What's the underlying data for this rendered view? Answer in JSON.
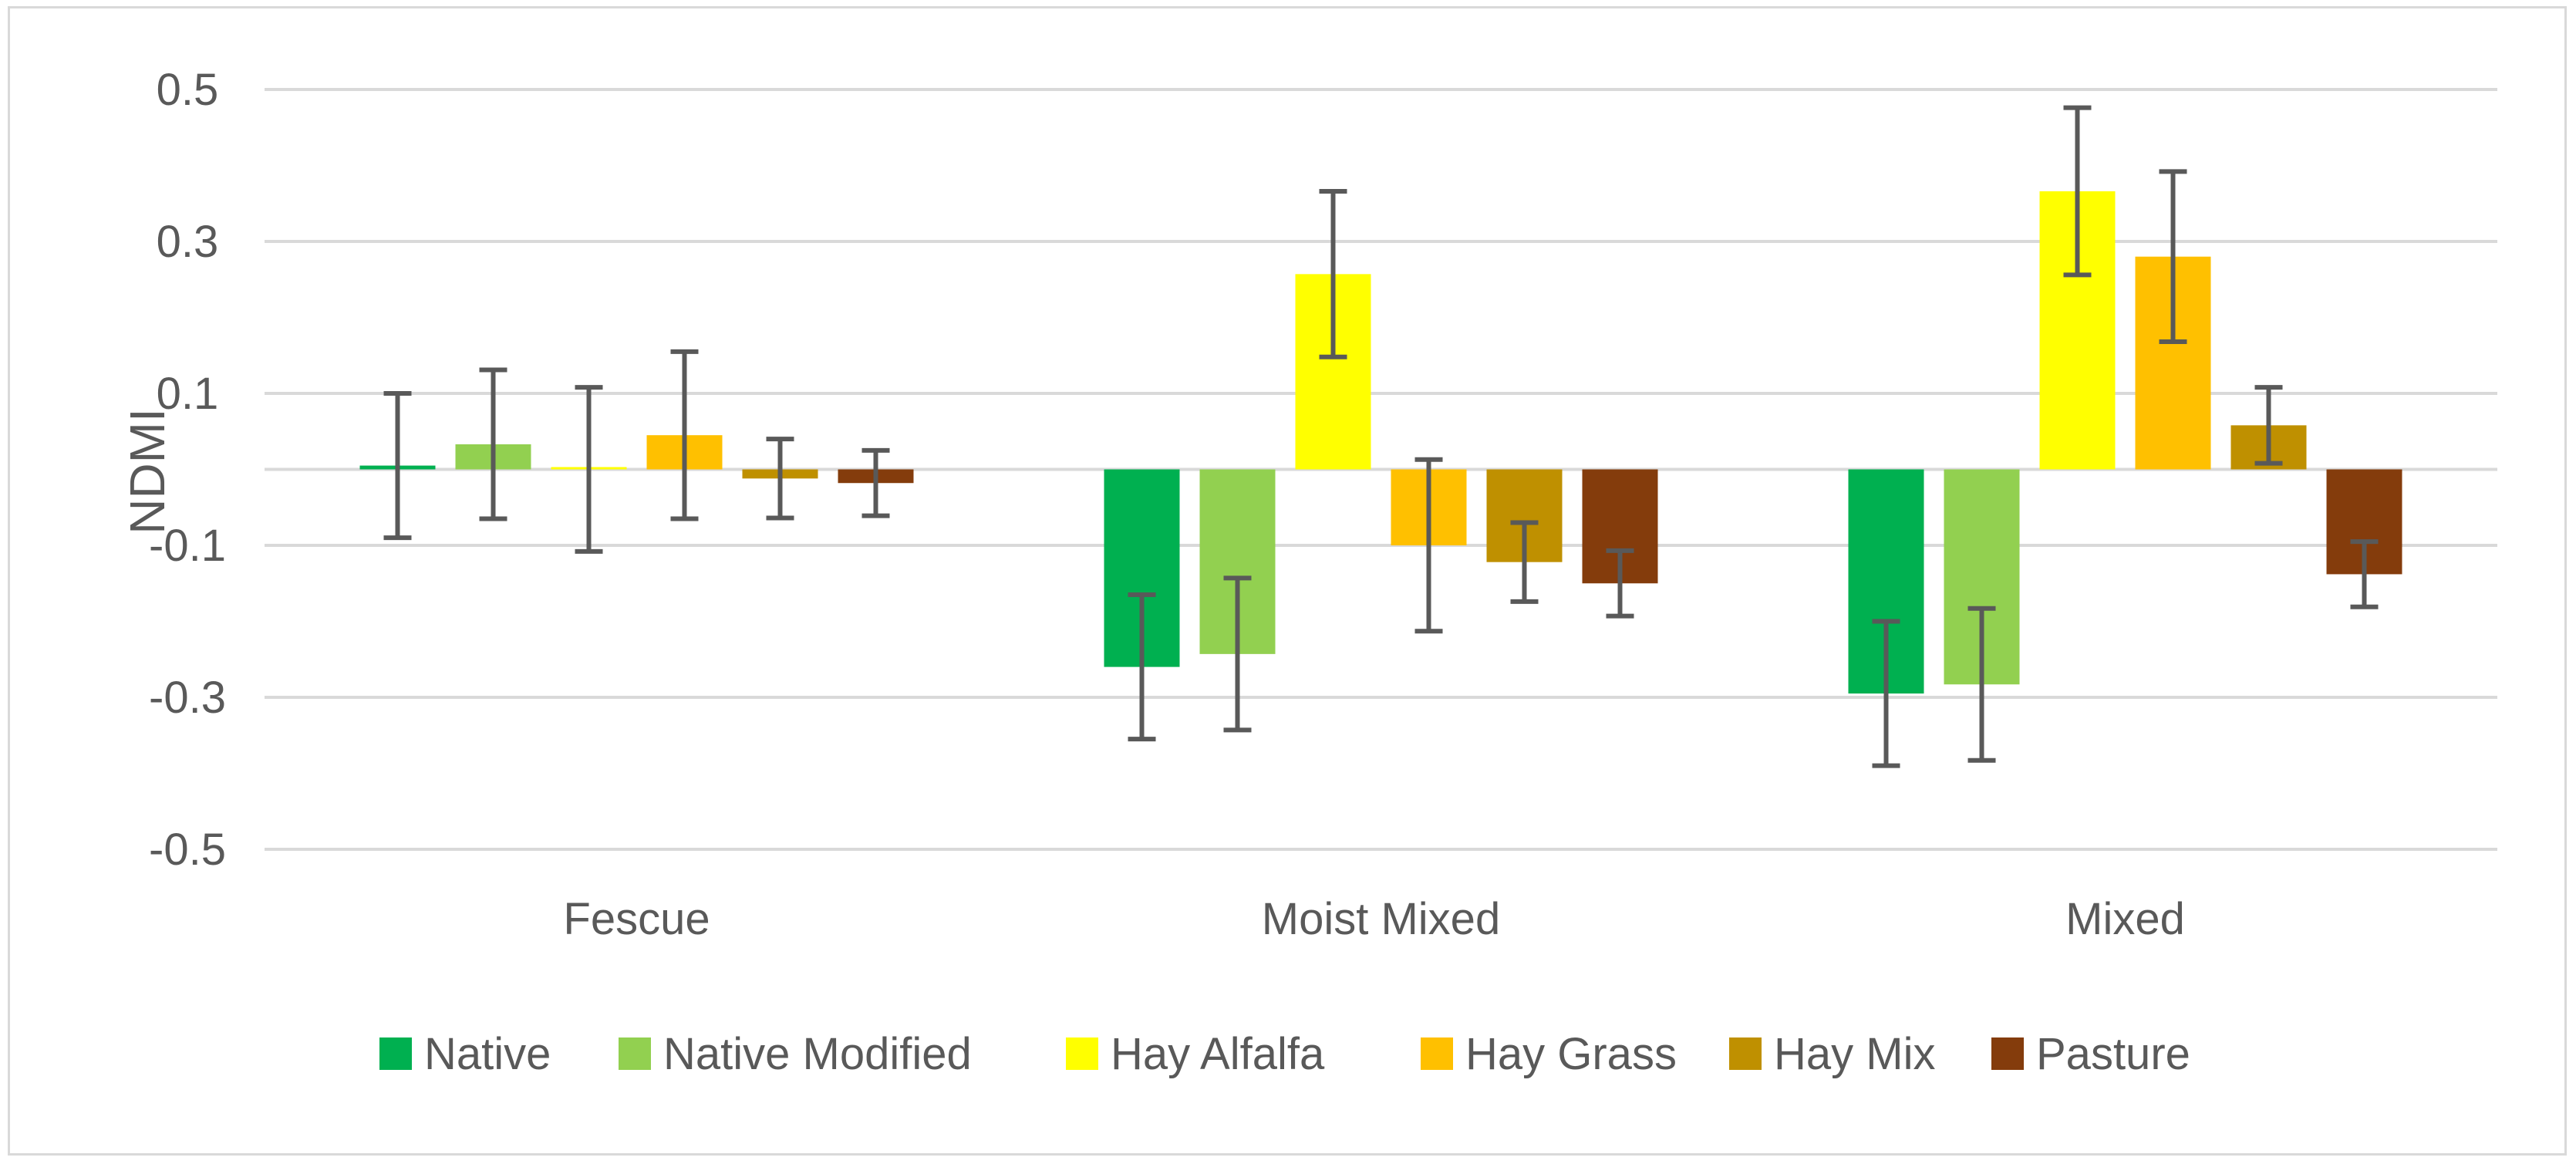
{
  "chart_data": {
    "type": "bar",
    "title": "",
    "xlabel": "",
    "ylabel": "NDMI",
    "ylim": [
      -0.5,
      0.5
    ],
    "yticks": [
      0.5,
      0.3,
      0.1,
      -0.1,
      -0.3,
      -0.5
    ],
    "ytick_labels": [
      "0.5",
      "0.3",
      "0.1",
      "-0.1",
      "-0.3",
      "-0.5"
    ],
    "grid": true,
    "legend_position": "bottom",
    "categories": [
      "Fescue",
      "Moist Mixed",
      "Mixed"
    ],
    "series": [
      {
        "name": "Native",
        "color": "#00b050",
        "values": [
          0.005,
          -0.26,
          -0.295
        ],
        "error": [
          0.095,
          0.095,
          0.095
        ]
      },
      {
        "name": "Native Modified",
        "color": "#92d050",
        "values": [
          0.033,
          -0.243,
          -0.283
        ],
        "error": [
          0.098,
          0.1,
          0.1
        ]
      },
      {
        "name": "Hay Alfalfa",
        "color": "#ffff00",
        "values": [
          0.0,
          0.257,
          0.366
        ],
        "error": [
          0.108,
          0.109,
          0.11
        ]
      },
      {
        "name": "Hay Grass",
        "color": "#ffc000",
        "values": [
          0.045,
          -0.1,
          0.28
        ],
        "error": [
          0.11,
          0.113,
          0.112
        ]
      },
      {
        "name": "Hay Mix",
        "color": "#bf9000",
        "values": [
          -0.012,
          -0.122,
          0.058
        ],
        "error": [
          0.052,
          0.052,
          0.05
        ]
      },
      {
        "name": "Pasture",
        "color": "#843c0c",
        "values": [
          -0.018,
          -0.15,
          -0.138
        ],
        "error": [
          0.043,
          0.043,
          0.043
        ]
      }
    ]
  }
}
